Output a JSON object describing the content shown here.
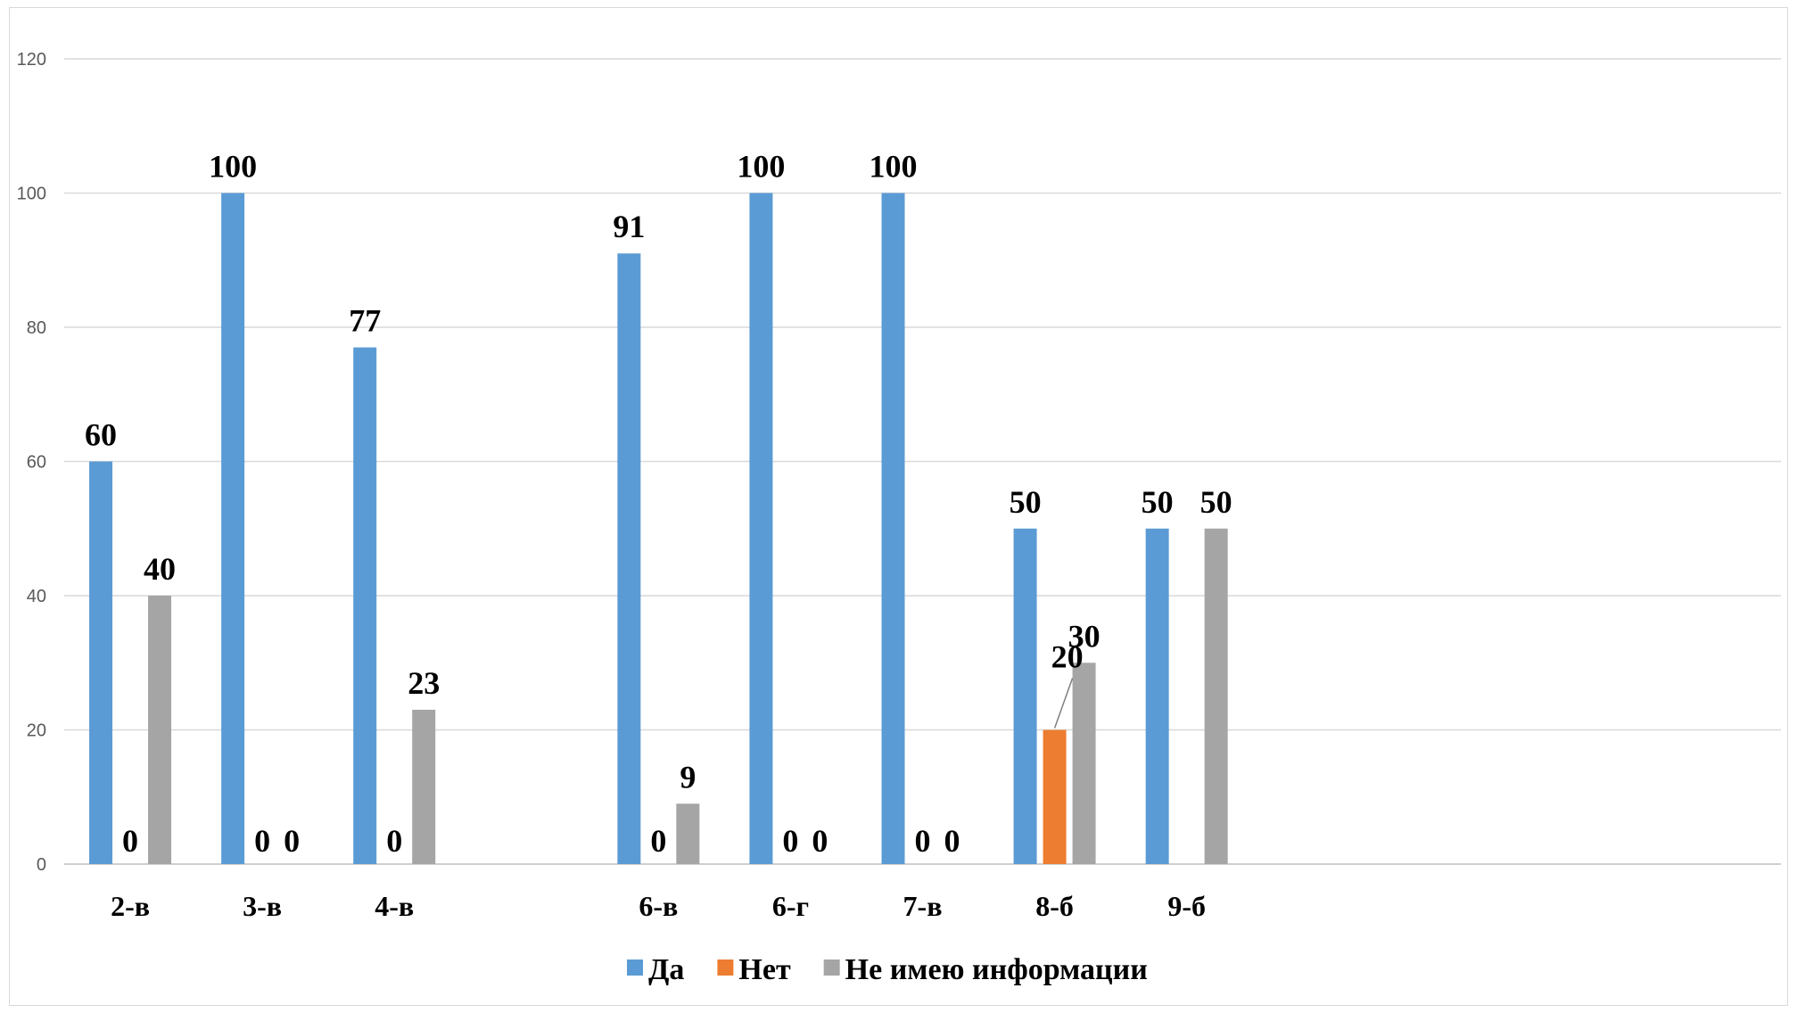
{
  "chart_data": {
    "type": "bar",
    "title": "",
    "xlabel": "",
    "ylabel": "",
    "ylim": [
      0,
      120
    ],
    "yticks": [
      0,
      20,
      40,
      60,
      80,
      100,
      120
    ],
    "grid": true,
    "legend_position": "bottom",
    "categories": [
      "2-в",
      "3-в",
      "4-в",
      "",
      "6-в",
      "6-г",
      "7-в",
      "8-б",
      "9-б",
      "",
      "",
      "",
      ""
    ],
    "series": [
      {
        "name": "Да",
        "color": "#5B9BD5",
        "values": [
          60,
          100,
          77,
          null,
          91,
          100,
          100,
          50,
          50,
          null,
          null,
          null,
          null
        ],
        "labels": [
          "60",
          "100",
          "77",
          "",
          "91",
          "100",
          "100",
          "50",
          "50",
          "",
          "",
          "",
          ""
        ]
      },
      {
        "name": "Нет",
        "color": "#ED7D31",
        "values": [
          0,
          0,
          0,
          null,
          0,
          0,
          0,
          20,
          null,
          null,
          null,
          null,
          null
        ],
        "labels": [
          "0",
          "0",
          "0",
          "",
          "0",
          "0",
          "0",
          "20",
          "",
          "",
          "",
          "",
          ""
        ]
      },
      {
        "name": "Не имею информации",
        "color": "#A5A5A5",
        "values": [
          40,
          0,
          23,
          null,
          9,
          0,
          0,
          30,
          50,
          null,
          null,
          null,
          null
        ],
        "labels": [
          "40",
          "0",
          "23",
          "",
          "9",
          "0",
          "0",
          "30",
          "50",
          "",
          "",
          "",
          ""
        ]
      }
    ]
  }
}
